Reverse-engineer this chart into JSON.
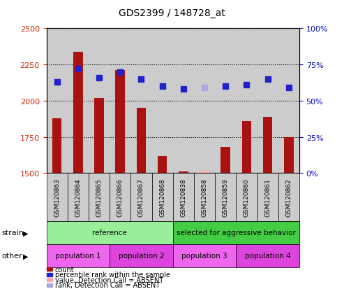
{
  "title": "GDS2399 / 148728_at",
  "samples": [
    "GSM120863",
    "GSM120864",
    "GSM120865",
    "GSM120866",
    "GSM120867",
    "GSM120868",
    "GSM120838",
    "GSM120858",
    "GSM120859",
    "GSM120860",
    "GSM120861",
    "GSM120862"
  ],
  "bar_values": [
    1880,
    2340,
    2020,
    2210,
    1950,
    1620,
    1510,
    1510,
    1680,
    1860,
    1890,
    1750
  ],
  "bar_absent": [
    false,
    false,
    false,
    false,
    false,
    false,
    false,
    true,
    false,
    false,
    false,
    false
  ],
  "dot_values": [
    2130,
    2220,
    2160,
    2200,
    2150,
    2100,
    2080,
    2090,
    2100,
    2110,
    2150,
    2090
  ],
  "dot_absent": [
    false,
    false,
    false,
    false,
    false,
    false,
    false,
    true,
    false,
    false,
    false,
    false
  ],
  "bar_color_normal": "#aa1111",
  "bar_color_absent": "#ffaaaa",
  "dot_color_normal": "#2222cc",
  "dot_color_absent": "#aaaadd",
  "ylim_left": [
    1500,
    2500
  ],
  "ylim_right": [
    0,
    100
  ],
  "yticks_left": [
    1500,
    1750,
    2000,
    2250,
    2500
  ],
  "yticks_right": [
    0,
    25,
    50,
    75,
    100
  ],
  "ytick_labels_right": [
    "0%",
    "25%",
    "50%",
    "75%",
    "100%"
  ],
  "strain_groups": [
    {
      "label": "reference",
      "start": 0,
      "end": 6,
      "color": "#99ee99"
    },
    {
      "label": "selected for aggressive behavior",
      "start": 6,
      "end": 12,
      "color": "#44cc44"
    }
  ],
  "other_groups": [
    {
      "label": "population 1",
      "start": 0,
      "end": 3,
      "color": "#ee66ee"
    },
    {
      "label": "population 2",
      "start": 3,
      "end": 6,
      "color": "#dd44dd"
    },
    {
      "label": "population 3",
      "start": 6,
      "end": 9,
      "color": "#ee66ee"
    },
    {
      "label": "population 4",
      "start": 9,
      "end": 12,
      "color": "#dd44dd"
    }
  ],
  "strain_label": "strain",
  "other_label": "other",
  "legend_items": [
    {
      "label": "count",
      "color": "#aa1111"
    },
    {
      "label": "percentile rank within the sample",
      "color": "#2222cc"
    },
    {
      "label": "value, Detection Call = ABSENT",
      "color": "#ffaaaa"
    },
    {
      "label": "rank, Detection Call = ABSENT",
      "color": "#aaaadd"
    }
  ],
  "xlabel_color_left": "#cc2200",
  "xlabel_color_right": "#0000cc",
  "sample_bg_color": "#cccccc",
  "dot_markersize": 6
}
